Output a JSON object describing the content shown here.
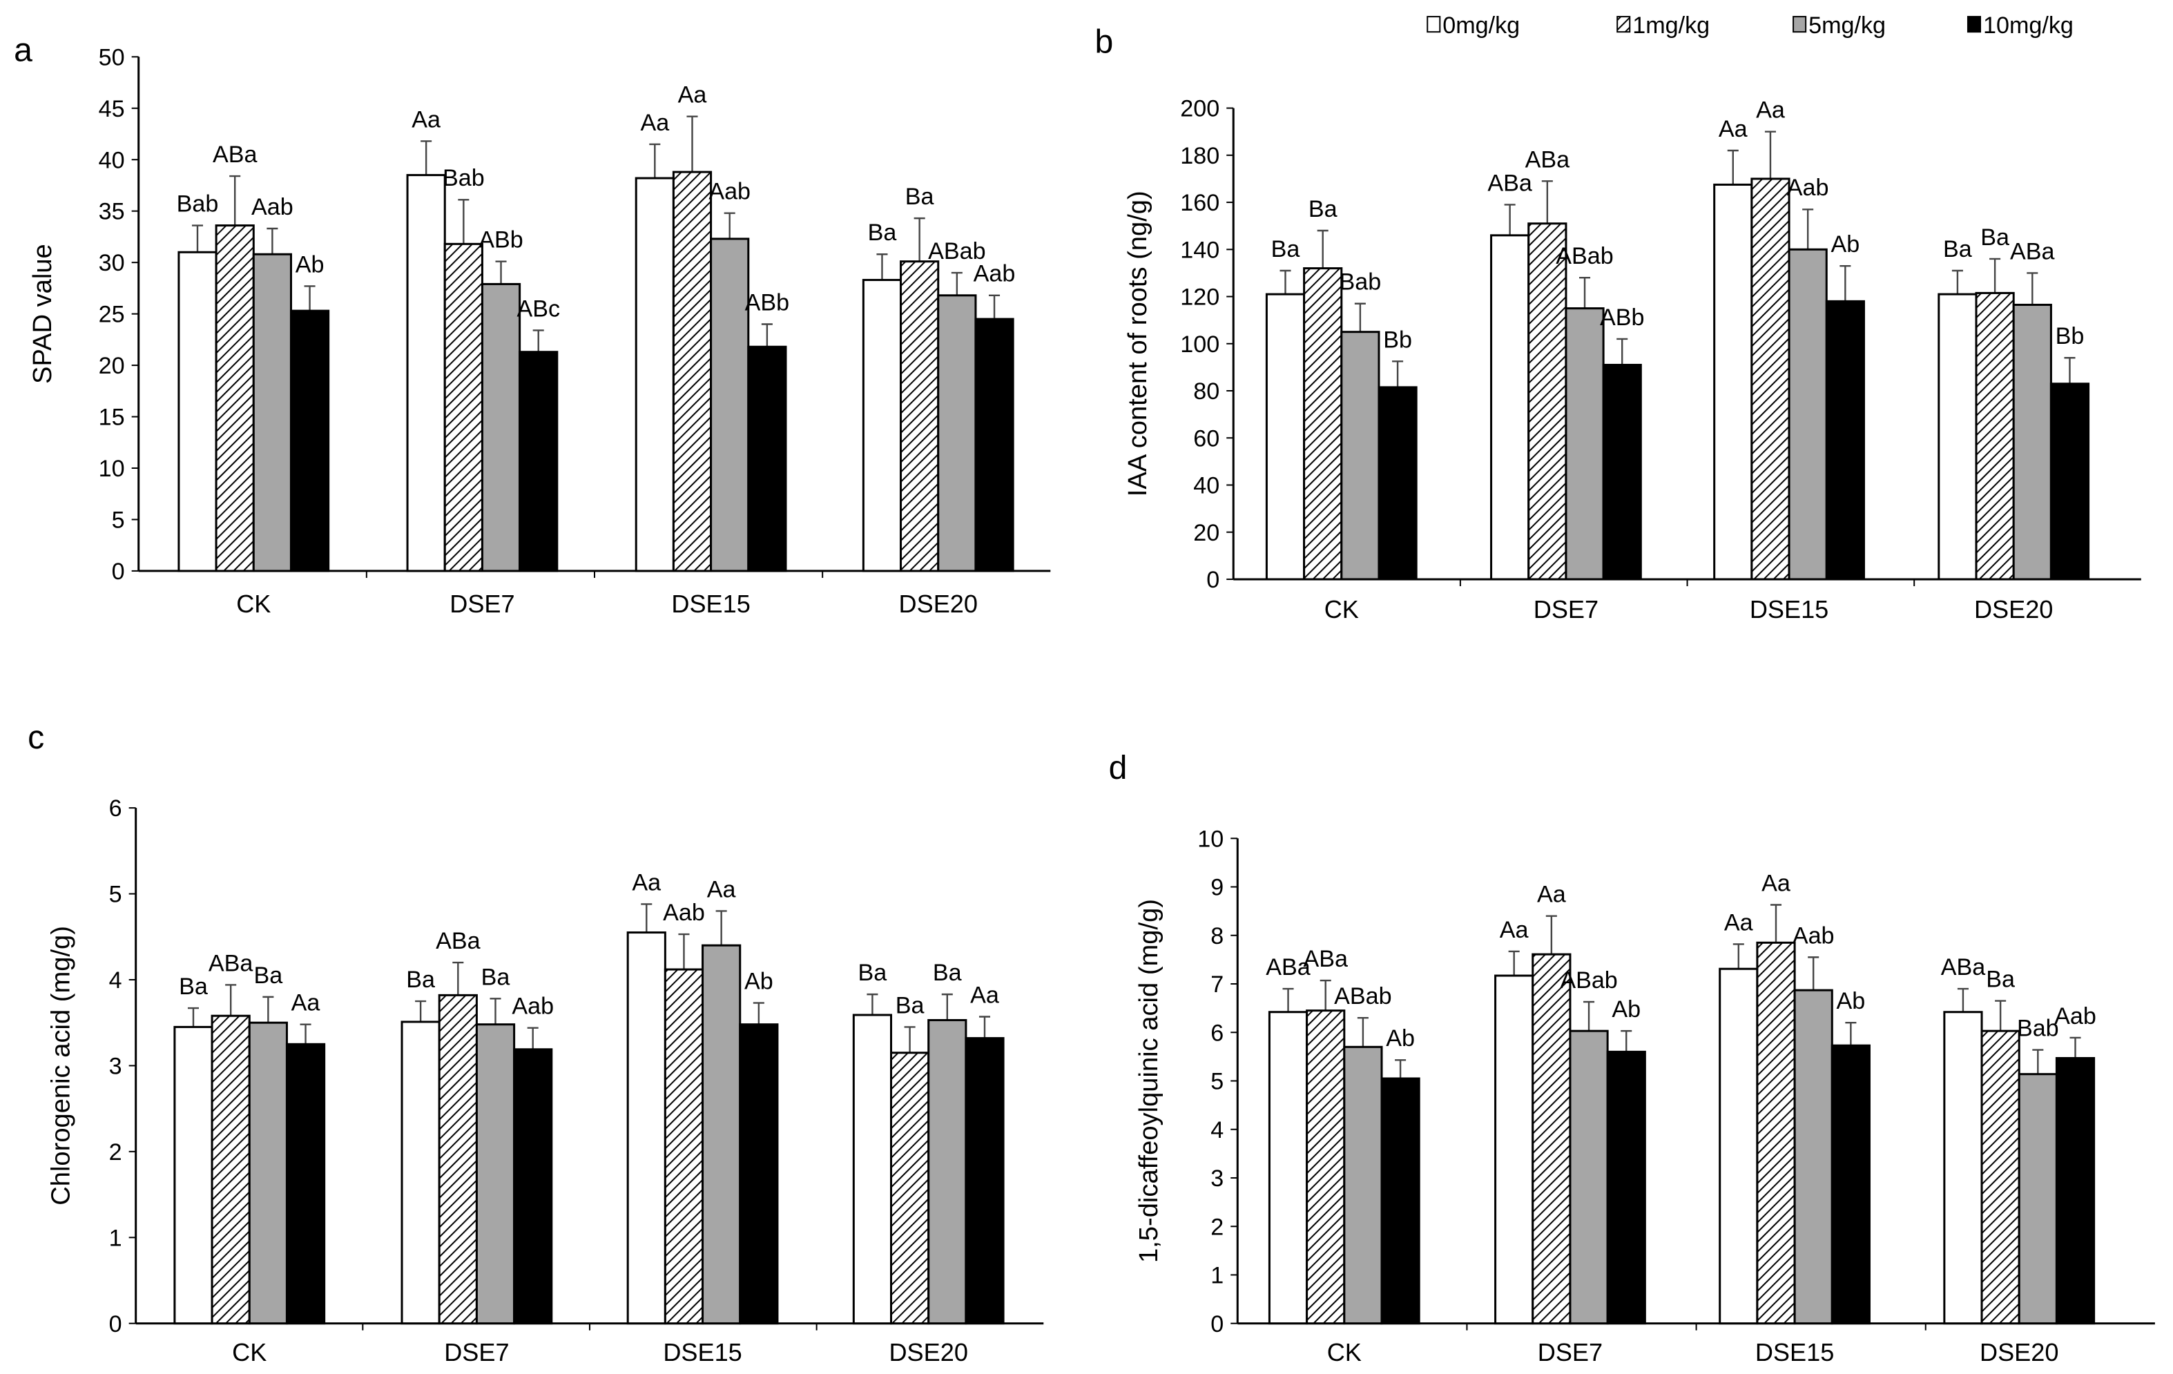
{
  "legend": {
    "entries": [
      "0mg/kg",
      "1mg/kg",
      "5mg/kg",
      "10mg/kg"
    ],
    "fills": [
      "#ffffff",
      "hatch",
      "#a6a6a6",
      "#000000"
    ]
  },
  "chart_data": [
    {
      "type": "bar",
      "panel": "a",
      "categories": [
        "CK",
        "DSE7",
        "DSE15",
        "DSE20"
      ],
      "xlabel": "",
      "ylabel": "SPAD value",
      "ylim": [
        0,
        50
      ],
      "yticks": [
        0,
        5,
        10,
        15,
        20,
        25,
        30,
        35,
        40,
        45,
        50
      ],
      "series": [
        {
          "name": "0mg/kg",
          "values": [
            31.0,
            38.5,
            38.2,
            28.3
          ],
          "error_upper": [
            33.6,
            41.8,
            41.5,
            30.8
          ],
          "labels": [
            "Bab",
            "Aa",
            "Aa",
            "Ba"
          ]
        },
        {
          "name": "1mg/kg",
          "values": [
            33.6,
            31.8,
            38.8,
            30.1
          ],
          "error_upper": [
            38.4,
            36.1,
            44.2,
            34.3
          ],
          "labels": [
            "ABa",
            "Bab",
            "Aa",
            "Ba"
          ]
        },
        {
          "name": "5mg/kg",
          "values": [
            30.8,
            27.9,
            32.3,
            26.8
          ],
          "error_upper": [
            33.3,
            30.1,
            34.8,
            29.0
          ],
          "labels": [
            "Aab",
            "ABb",
            "Aab",
            "ABab"
          ]
        },
        {
          "name": "10mg/kg",
          "values": [
            25.3,
            21.3,
            21.8,
            24.5
          ],
          "error_upper": [
            27.7,
            23.4,
            24.0,
            26.8
          ],
          "labels": [
            "Ab",
            "ABc",
            "ABb",
            "Aab"
          ]
        }
      ]
    },
    {
      "type": "bar",
      "panel": "b",
      "categories": [
        "CK",
        "DSE7",
        "DSE15",
        "DSE20"
      ],
      "xlabel": "",
      "ylabel": "IAA content of roots (ng/g)",
      "ylim": [
        0,
        200
      ],
      "yticks": [
        0,
        20,
        40,
        60,
        80,
        100,
        120,
        140,
        160,
        180,
        200
      ],
      "series": [
        {
          "name": "0mg/kg",
          "values": [
            121,
            146,
            167.5,
            121
          ],
          "error_upper": [
            131,
            159,
            182,
            131
          ],
          "labels": [
            "Ba",
            "ABa",
            "Aa",
            "Ba"
          ]
        },
        {
          "name": "1mg/kg",
          "values": [
            132,
            151,
            170,
            121.5
          ],
          "error_upper": [
            148,
            169,
            190,
            136
          ],
          "labels": [
            "Ba",
            "ABa",
            "Aa",
            "Ba"
          ]
        },
        {
          "name": "5mg/kg",
          "values": [
            105,
            115,
            140,
            116.5
          ],
          "error_upper": [
            117,
            128,
            157,
            130
          ],
          "labels": [
            "Bab",
            "ABab",
            "Aab",
            "ABa"
          ]
        },
        {
          "name": "10mg/kg",
          "values": [
            81.5,
            91,
            118,
            83
          ],
          "error_upper": [
            92.5,
            102,
            133,
            94
          ],
          "labels": [
            "Bb",
            "ABb",
            "Ab",
            "Bb"
          ]
        }
      ]
    },
    {
      "type": "bar",
      "panel": "c",
      "categories": [
        "CK",
        "DSE7",
        "DSE15",
        "DSE20"
      ],
      "xlabel": "",
      "ylabel": "Chlorogenic acid (mg/g)",
      "ylim": [
        0,
        6
      ],
      "yticks": [
        0,
        1,
        2,
        3,
        4,
        5,
        6
      ],
      "series": [
        {
          "name": "0mg/kg",
          "values": [
            3.45,
            3.51,
            4.55,
            3.59
          ],
          "error_upper": [
            3.67,
            3.75,
            4.88,
            3.83
          ],
          "labels": [
            "Ba",
            "Ba",
            "Aa",
            "Ba"
          ]
        },
        {
          "name": "1mg/kg",
          "values": [
            3.58,
            3.82,
            4.12,
            3.15
          ],
          "error_upper": [
            3.94,
            4.2,
            4.53,
            3.45
          ],
          "labels": [
            "ABa",
            "ABa",
            "Aab",
            "Ba"
          ]
        },
        {
          "name": "5mg/kg",
          "values": [
            3.5,
            3.48,
            4.4,
            3.53
          ],
          "error_upper": [
            3.8,
            3.78,
            4.8,
            3.83
          ],
          "labels": [
            "Ba",
            "Ba",
            "Aa",
            "Ba"
          ]
        },
        {
          "name": "10mg/kg",
          "values": [
            3.25,
            3.19,
            3.48,
            3.32
          ],
          "error_upper": [
            3.48,
            3.44,
            3.73,
            3.57
          ],
          "labels": [
            "Aa",
            "Aab",
            "Ab",
            "Aa"
          ]
        }
      ]
    },
    {
      "type": "bar",
      "panel": "d",
      "categories": [
        "CK",
        "DSE7",
        "DSE15",
        "DSE20"
      ],
      "xlabel": "",
      "ylabel": "1,5-dicaffeoylquinic acid (mg/g)",
      "ylim": [
        0,
        10
      ],
      "yticks": [
        0,
        1,
        2,
        3,
        4,
        5,
        6,
        7,
        8,
        9,
        10
      ],
      "series": [
        {
          "name": "0mg/kg",
          "values": [
            6.42,
            7.17,
            7.31,
            6.42
          ],
          "error_upper": [
            6.9,
            7.67,
            7.82,
            6.9
          ],
          "labels": [
            "ABa",
            "Aa",
            "Aa",
            "ABa"
          ]
        },
        {
          "name": "1mg/kg",
          "values": [
            6.45,
            7.61,
            7.85,
            6.03
          ],
          "error_upper": [
            7.07,
            8.4,
            8.63,
            6.65
          ],
          "labels": [
            "ABa",
            "Aa",
            "Aa",
            "Ba"
          ]
        },
        {
          "name": "5mg/kg",
          "values": [
            5.7,
            6.03,
            6.87,
            5.14
          ],
          "error_upper": [
            6.3,
            6.63,
            7.55,
            5.64
          ],
          "labels": [
            "ABab",
            "ABab",
            "Aab",
            "Bab"
          ]
        },
        {
          "name": "10mg/kg",
          "values": [
            5.05,
            5.6,
            5.73,
            5.47
          ],
          "error_upper": [
            5.43,
            6.03,
            6.2,
            5.89
          ],
          "labels": [
            "Ab",
            "Ab",
            "Ab",
            "Aab"
          ]
        }
      ]
    }
  ]
}
